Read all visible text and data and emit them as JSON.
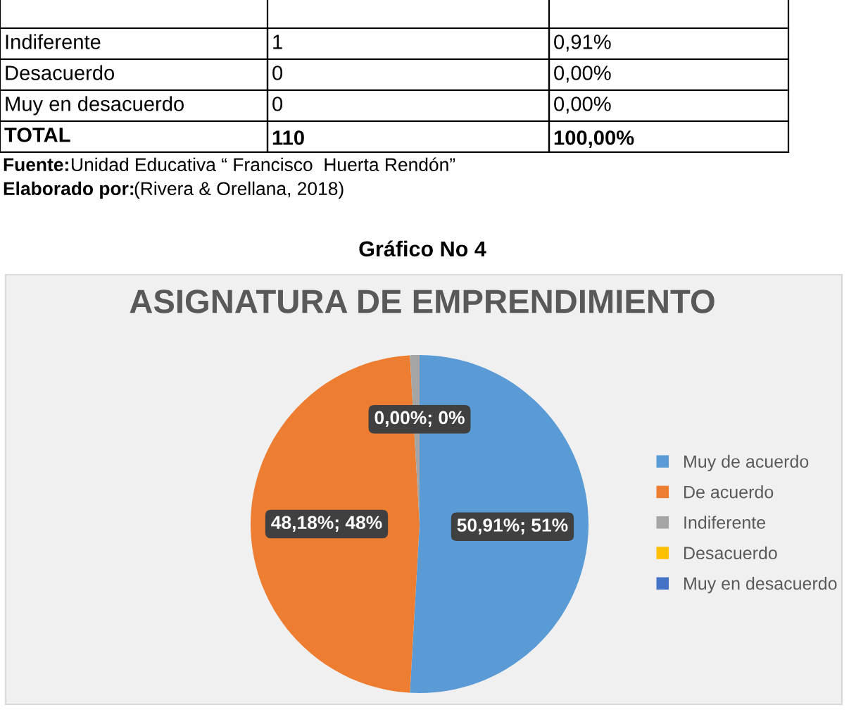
{
  "chart_data": {
    "type": "pie",
    "title": "ASIGNATURA DE EMPRENDIMIENTO",
    "categories": [
      "Muy de acuerdo",
      "De acuerdo",
      "Indiferente",
      "Desacuerdo",
      "Muy en desacuerdo"
    ],
    "values": [
      50.91,
      48.18,
      0.91,
      0,
      0
    ],
    "colors": [
      "#5b9bd5",
      "#ed7d31",
      "#a5a5a5",
      "#ffc000",
      "#4472c4"
    ],
    "value_labels": [
      "50,91%; 51%",
      "48,18%; 48%",
      null,
      "0,00%; 0%",
      null
    ],
    "legend": "right",
    "annotations": [
      "Indiferente",
      "1",
      "0,91%",
      "Desacuerdo",
      "0",
      "0,00%",
      "Muy en desacuerdo",
      "0",
      "0,00%",
      "TOTAL",
      "110",
      "100,00%",
      "Fuente: Unidad Educativa “ Francisco  Huerta Rendón”",
      "Elaborado por:  (Rivera & Orellana, 2018)",
      "Gráfico No 4"
    ]
  }
}
